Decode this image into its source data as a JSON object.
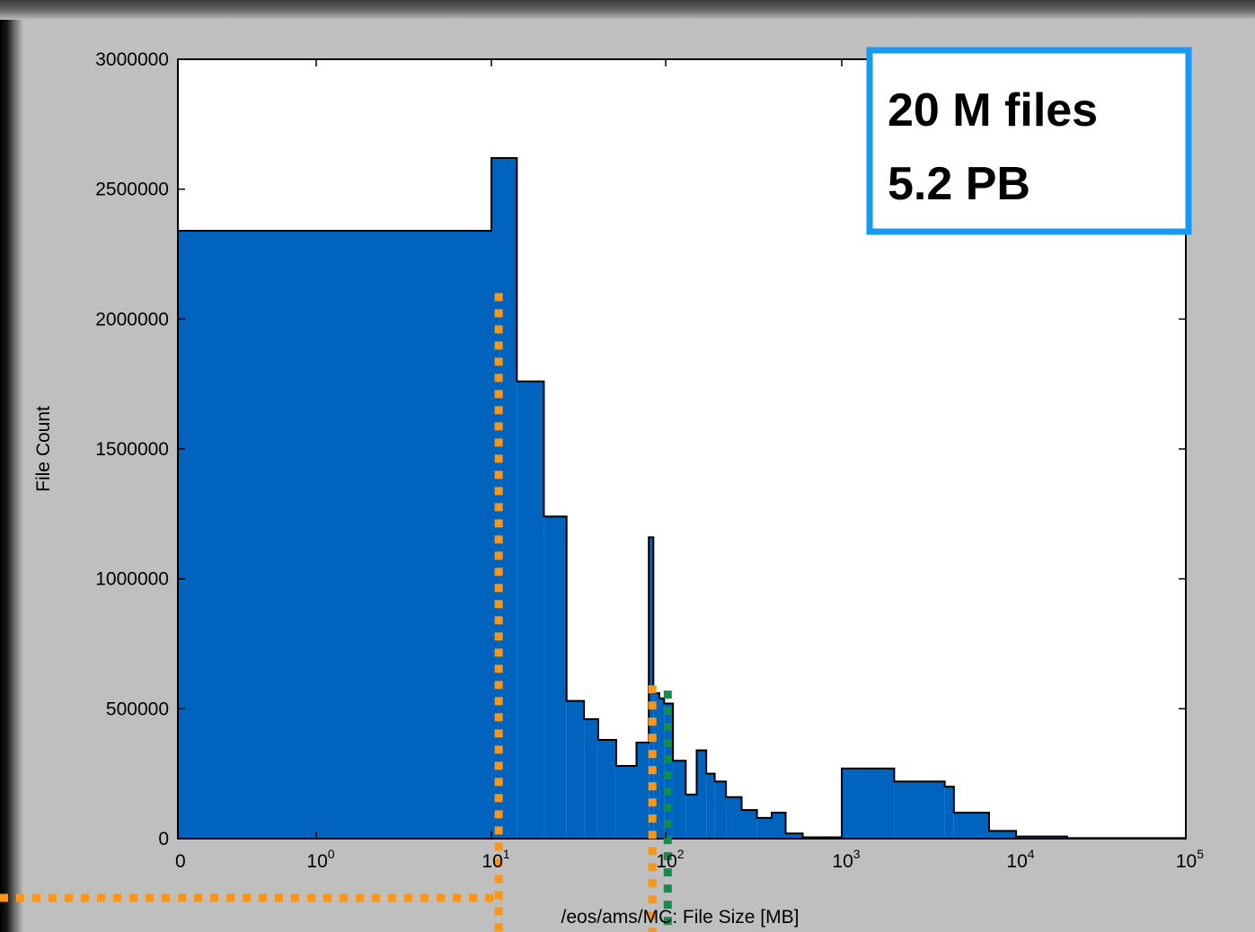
{
  "chart_data": {
    "type": "bar",
    "title": "",
    "xlabel": "/eos/ams/MC: File Size [MB]",
    "ylabel": "File Count",
    "x_scale": "log",
    "ylim": [
      0,
      3000000
    ],
    "x_ticks": [
      {
        "label": "0",
        "exp": ""
      },
      {
        "label": "10",
        "exp": "0"
      },
      {
        "label": "10",
        "exp": "1"
      },
      {
        "label": "10",
        "exp": "2"
      },
      {
        "label": "10",
        "exp": "3"
      },
      {
        "label": "10",
        "exp": "4"
      },
      {
        "label": "10",
        "exp": "5"
      }
    ],
    "y_ticks": [
      "0",
      "500000",
      "1000000",
      "1500000",
      "2000000",
      "2500000",
      "3000000"
    ],
    "bar_color": "#0063be",
    "series": [
      {
        "values": [
          [
            0,
            10,
            2340000
          ],
          [
            10,
            14,
            2620000
          ],
          [
            14,
            20,
            1760000
          ],
          [
            20,
            27,
            1240000
          ],
          [
            27,
            34,
            530000
          ],
          [
            34,
            41,
            460000
          ],
          [
            41,
            52,
            380000
          ],
          [
            52,
            68,
            280000
          ],
          [
            68,
            80,
            370000
          ],
          [
            80,
            85,
            1160000
          ],
          [
            85,
            92,
            560000
          ],
          [
            92,
            98,
            540000
          ],
          [
            98,
            110,
            520000
          ],
          [
            110,
            130,
            300000
          ],
          [
            130,
            150,
            170000
          ],
          [
            150,
            170,
            340000
          ],
          [
            170,
            190,
            250000
          ],
          [
            190,
            220,
            220000
          ],
          [
            220,
            270,
            160000
          ],
          [
            270,
            330,
            110000
          ],
          [
            330,
            400,
            80000
          ],
          [
            400,
            480,
            100000
          ],
          [
            480,
            600,
            20000
          ],
          [
            600,
            1000,
            5000
          ],
          [
            1000,
            2000,
            270000
          ],
          [
            2000,
            3900,
            220000
          ],
          [
            3900,
            4400,
            200000
          ],
          [
            4400,
            7000,
            100000
          ],
          [
            7000,
            10000,
            30000
          ],
          [
            10000,
            20000,
            8000
          ],
          [
            20000,
            100000,
            2000
          ]
        ]
      }
    ],
    "annotations": [
      {
        "text_lines": [
          "20 M files",
          "5.2 PB"
        ],
        "border_color": "#1799f5"
      }
    ],
    "marker_lines": [
      {
        "x": 10.5,
        "from_y": 2100000,
        "color": "#f7961a",
        "extends_left": true
      },
      {
        "x": 80,
        "from_y": 590000,
        "color": "#f7961a"
      },
      {
        "x": 98,
        "from_y": 570000,
        "color": "#0f8f4a"
      }
    ]
  }
}
